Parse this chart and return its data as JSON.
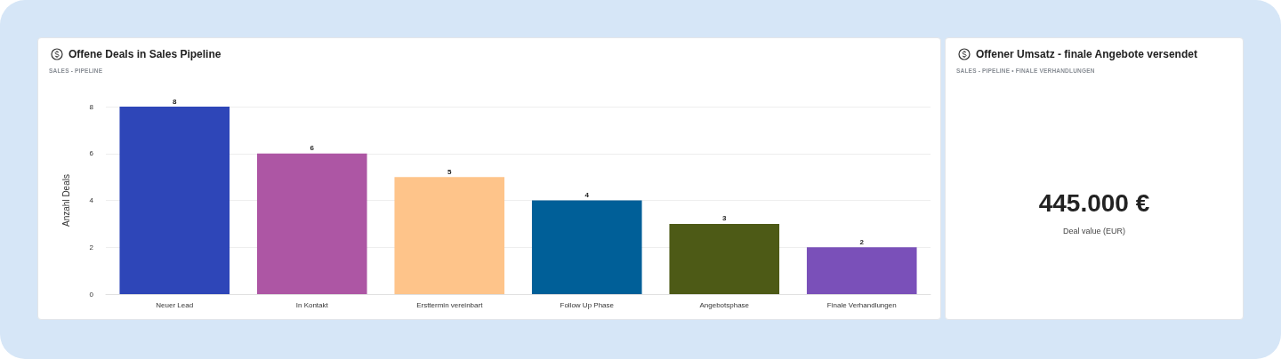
{
  "chart_data": [
    {
      "type": "bar",
      "title": "Offene Deals in Sales Pipeline",
      "subtitle": "SALES - PIPELINE",
      "ylabel": "Anzahl Deals",
      "categories": [
        "Neuer Lead",
        "In Kontakt",
        "Ersttermin vereinbart",
        "Follow Up Phase",
        "Angebotsphase",
        "Finale Verhandlungen"
      ],
      "values": [
        8,
        6,
        5,
        4,
        3,
        2
      ],
      "colors": [
        "#2e46b8",
        "#ad56a4",
        "#fec48a",
        "#005f98",
        "#4d5a16",
        "#7a50b9"
      ],
      "ylim": [
        0,
        8
      ],
      "yticks": [
        0,
        2,
        4,
        6,
        8
      ],
      "grid": "y",
      "data_labels": true
    },
    {
      "type": "other",
      "title": "Offener Umsatz - finale Angebote versendet",
      "subtitle": "SALES - PIPELINE • FINALE VERHANDLUNGEN",
      "annotations": [
        "445.000 €",
        "Deal value (EUR)"
      ]
    }
  ]
}
